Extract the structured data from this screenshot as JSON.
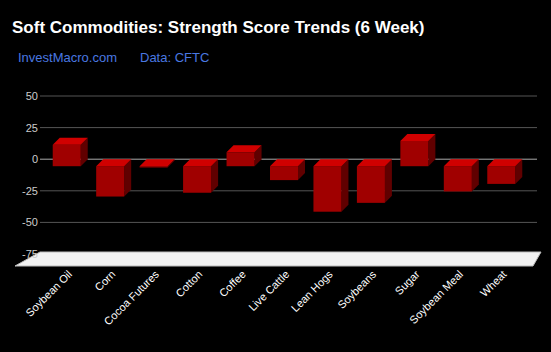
{
  "chart_data": {
    "type": "bar",
    "title": "Soft Commodities: Strength Score Trends (6 Week)",
    "subtitle": "InvestMacro.com",
    "annotations": [
      "Data: CFTC"
    ],
    "categories": [
      "Soybean Oil",
      "Corn",
      "Cocoa Futures",
      "Cotton",
      "Coffee",
      "Live Cattle",
      "Lean Hogs",
      "Soybeans",
      "Sugar",
      "Soybean Meal",
      "Wheat"
    ],
    "values": [
      17,
      -24,
      -1,
      -21,
      11,
      -11,
      -36,
      -29,
      20,
      -20,
      -14
    ],
    "color": "#a00000",
    "ylim": [
      -75,
      50
    ],
    "yticks": [
      -75,
      -50,
      -25,
      0,
      25,
      50
    ],
    "grid": true
  }
}
